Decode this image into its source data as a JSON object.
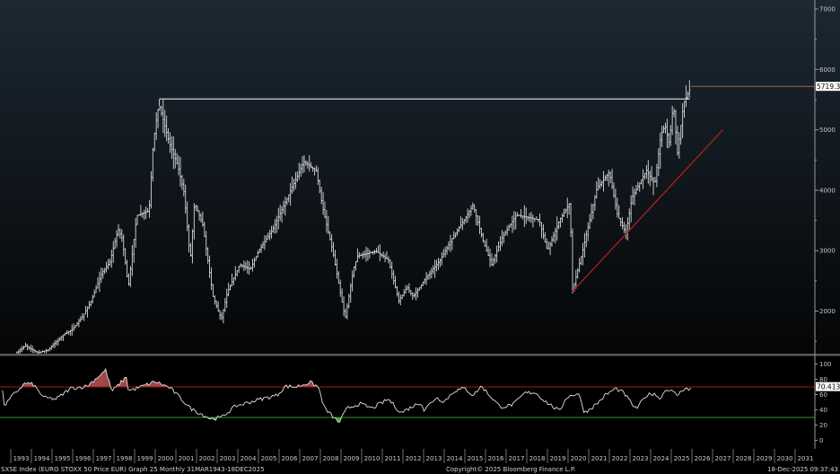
{
  "footer": {
    "description": "SXSE Index (EURO STOXX 50 Price EUR) Graph 25 Monthly 31MAR1943-18DEC2025",
    "copyright": "Copyright© 2025 Bloomberg Finance L.P.",
    "timestamp": "18-Dec-2025 09:37:43"
  },
  "colors": {
    "background_top": "#1c2833",
    "background_bottom": "#040506",
    "price_bars": "#d8d8d8",
    "resistance_line": "#d0d0d0",
    "last_price_line": "#a0672a",
    "trend_line": "#b01e1e",
    "rsi_line": "#e0e0e0",
    "overbought_line": "#a01818",
    "oversold_line": "#2e9a2e",
    "overbought_fill": "#a04848",
    "oversold_fill": "#4aa04a"
  },
  "chart_data": [
    {
      "type": "ohlc",
      "frequency": "Monthly",
      "x_ticks": [
        "1993",
        "1994",
        "1995",
        "1996",
        "1997",
        "1998",
        "1999",
        "2000",
        "2001",
        "2002",
        "2003",
        "2004",
        "2005",
        "2006",
        "2007",
        "2008",
        "2009",
        "2010",
        "2011",
        "2012",
        "2013",
        "2014",
        "2015",
        "2016",
        "2017",
        "2018",
        "2019",
        "2020",
        "2021",
        "2022",
        "2023",
        "2024",
        "2025",
        "2026",
        "2027",
        "2028",
        "2029",
        "2030",
        "2031"
      ],
      "y_ticks": [
        2000,
        3000,
        4000,
        5000,
        6000,
        7000
      ],
      "ylim": [
        1280,
        7150
      ],
      "y_axis_side": "right",
      "last_value_label": "5719.34",
      "last_value": 5719.34,
      "series_points": [
        [
          "1993.3",
          1310
        ],
        [
          "1993.7",
          1430
        ],
        [
          "1994.3",
          1310
        ],
        [
          "1994.8",
          1355
        ],
        [
          "1995.6",
          1620
        ],
        [
          "1996.0",
          1700
        ],
        [
          "1996.5",
          1920
        ],
        [
          "1996.9",
          2170
        ],
        [
          "1997.4",
          2620
        ],
        [
          "1997.8",
          2810
        ],
        [
          "1998.2",
          3360
        ],
        [
          "1998.4",
          3200
        ],
        [
          "1998.7",
          2400
        ],
        [
          "1999.1",
          3580
        ],
        [
          "1999.7",
          3660
        ],
        [
          "1999.9",
          4770
        ],
        [
          "2000.1",
          5290
        ],
        [
          "2000.2",
          5400
        ],
        [
          "2000.7",
          4770
        ],
        [
          "2001.1",
          4400
        ],
        [
          "2001.4",
          3950
        ],
        [
          "2001.7",
          2840
        ],
        [
          "2001.9",
          3800
        ],
        [
          "2002.3",
          3430
        ],
        [
          "2002.8",
          2240
        ],
        [
          "2003.2",
          1870
        ],
        [
          "2003.5",
          2320
        ],
        [
          "2004.1",
          2770
        ],
        [
          "2004.6",
          2690
        ],
        [
          "2005.0",
          2990
        ],
        [
          "2005.7",
          3360
        ],
        [
          "2006.3",
          3800
        ],
        [
          "2007.2",
          4470
        ],
        [
          "2007.8",
          4320
        ],
        [
          "2008.1",
          3730
        ],
        [
          "2008.6",
          2990
        ],
        [
          "2009.2",
          1870
        ],
        [
          "2009.6",
          2690
        ],
        [
          "2009.8",
          2910
        ],
        [
          "2010.7",
          2990
        ],
        [
          "2011.3",
          2840
        ],
        [
          "2011.8",
          2170
        ],
        [
          "2012.2",
          2390
        ],
        [
          "2012.5",
          2240
        ],
        [
          "2013.1",
          2540
        ],
        [
          "2013.8",
          2840
        ],
        [
          "2014.4",
          3210
        ],
        [
          "2015.1",
          3580
        ],
        [
          "2015.4",
          3760
        ],
        [
          "2015.9",
          3140
        ],
        [
          "2016.3",
          2770
        ],
        [
          "2016.8",
          3210
        ],
        [
          "2017.5",
          3590
        ],
        [
          "2018.6",
          3510
        ],
        [
          "2019.0",
          2990
        ],
        [
          "2019.6",
          3510
        ],
        [
          "2020.1",
          3800
        ],
        [
          "2020.2",
          2320
        ],
        [
          "2020.7",
          2990
        ],
        [
          "2021.4",
          4030
        ],
        [
          "2022.0",
          4300
        ],
        [
          "2022.4",
          3580
        ],
        [
          "2022.8",
          3290
        ],
        [
          "2023.1",
          3880
        ],
        [
          "2023.8",
          4330
        ],
        [
          "2024.2",
          4100
        ],
        [
          "2024.5",
          4920
        ],
        [
          "2024.7",
          5070
        ],
        [
          "2024.9",
          4770
        ],
        [
          "2025.1",
          5440
        ],
        [
          "2025.3",
          4620
        ],
        [
          "2025.6",
          5440
        ],
        [
          "2025.96",
          5719.34
        ]
      ],
      "annotations": [
        {
          "type": "horizontal",
          "label": "resistance",
          "value": 5510,
          "from": "2000.2",
          "to": "2025.9"
        },
        {
          "type": "horizontal",
          "label": "last price",
          "value": 5719.34,
          "from": "2025.96",
          "to": "axis"
        },
        {
          "type": "trendline",
          "from": [
            "2020.2",
            2320
          ],
          "to": [
            "2027.5",
            5000
          ]
        }
      ],
      "grid": false
    },
    {
      "type": "line",
      "name": "RSI",
      "y_ticks": [
        0,
        20,
        40,
        60,
        80,
        100
      ],
      "ylim": [
        -2,
        110
      ],
      "reference_lines": [
        70,
        30
      ],
      "last_value_label": "70.4138",
      "last_value": 70.4138,
      "series_points": [
        [
          "1992.6",
          63
        ],
        [
          "1992.7",
          45
        ],
        [
          "1993.1",
          59
        ],
        [
          "1993.7",
          75
        ],
        [
          "1994.1",
          73
        ],
        [
          "1994.6",
          56
        ],
        [
          "1995.2",
          54
        ],
        [
          "1995.9",
          68
        ],
        [
          "1996.7",
          71
        ],
        [
          "1997.3",
          85
        ],
        [
          "1997.6",
          92
        ],
        [
          "1997.9",
          64
        ],
        [
          "1998.6",
          83
        ],
        [
          "1998.7",
          65
        ],
        [
          "1999.2",
          69
        ],
        [
          "2000.0",
          77
        ],
        [
          "2000.7",
          69
        ],
        [
          "2001.2",
          56
        ],
        [
          "2001.7",
          42
        ],
        [
          "2002.7",
          28
        ],
        [
          "2003.2",
          30
        ],
        [
          "2003.9",
          45
        ],
        [
          "2005.1",
          54
        ],
        [
          "2005.9",
          59
        ],
        [
          "2006.3",
          71
        ],
        [
          "2006.8",
          70
        ],
        [
          "2007.5",
          76
        ],
        [
          "2007.9",
          70
        ],
        [
          "2008.2",
          42
        ],
        [
          "2008.9",
          23
        ],
        [
          "2009.3",
          42
        ],
        [
          "2009.9",
          48
        ],
        [
          "2010.5",
          42
        ],
        [
          "2011.3",
          54
        ],
        [
          "2011.9",
          36
        ],
        [
          "2012.5",
          45
        ],
        [
          "2012.9",
          50
        ],
        [
          "2013.0",
          39
        ],
        [
          "2013.6",
          56
        ],
        [
          "2014.0",
          51
        ],
        [
          "2014.5",
          65
        ],
        [
          "2015.0",
          68
        ],
        [
          "2015.4",
          59
        ],
        [
          "2015.8",
          71
        ],
        [
          "2016.2",
          59
        ],
        [
          "2016.7",
          44
        ],
        [
          "2017.1",
          45
        ],
        [
          "2017.4",
          48
        ],
        [
          "2017.9",
          62
        ],
        [
          "2018.4",
          63
        ],
        [
          "2018.9",
          51
        ],
        [
          "2019.6",
          38
        ],
        [
          "2019.9",
          56
        ],
        [
          "2020.5",
          62
        ],
        [
          "2020.8",
          36
        ],
        [
          "2021.4",
          48
        ],
        [
          "2021.8",
          59
        ],
        [
          "2022.3",
          68
        ],
        [
          "2022.7",
          62
        ],
        [
          "2023.2",
          44
        ],
        [
          "2023.3",
          41
        ],
        [
          "2023.8",
          59
        ],
        [
          "2024.2",
          62
        ],
        [
          "2024.4",
          54
        ],
        [
          "2024.8",
          68
        ],
        [
          "2025.3",
          59
        ],
        [
          "2025.7",
          70
        ],
        [
          "2025.9",
          63
        ],
        [
          "2025.96",
          70.4
        ]
      ]
    }
  ]
}
